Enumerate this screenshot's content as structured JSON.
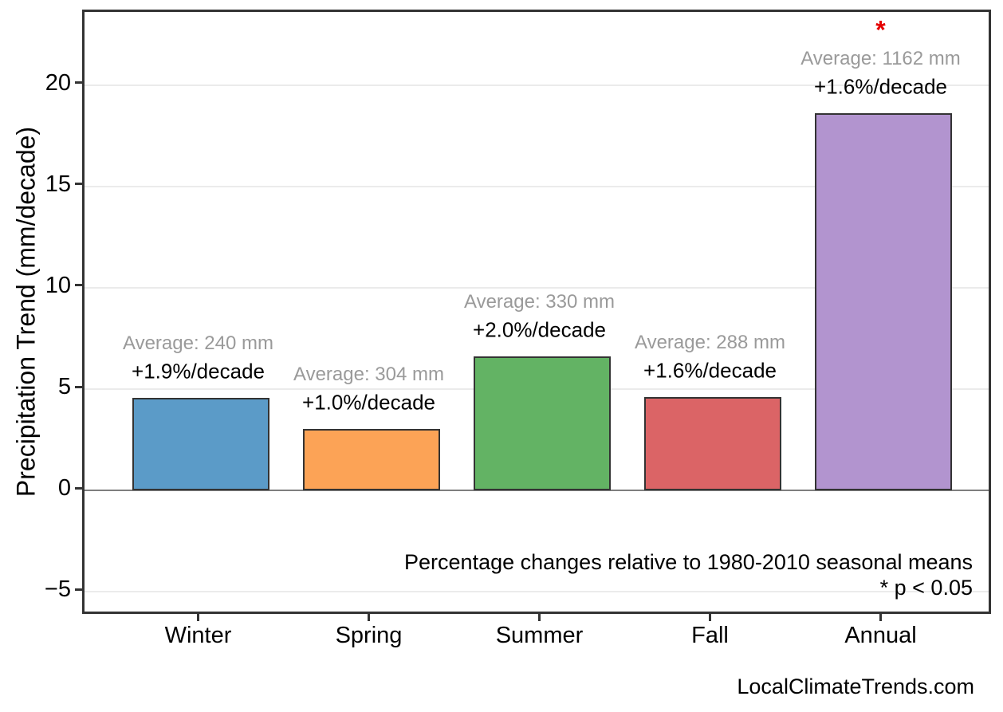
{
  "chart_data": {
    "type": "bar",
    "categories": [
      "Winter",
      "Spring",
      "Summer",
      "Fall",
      "Annual"
    ],
    "values": [
      4.56,
      3.04,
      6.6,
      4.61,
      18.6
    ],
    "series": [
      {
        "name": "Precipitation trend",
        "values": [
          4.56,
          3.04,
          6.6,
          4.61,
          18.6
        ]
      }
    ],
    "bar_colors": [
      "#5b9bc8",
      "#fca356",
      "#63b364",
      "#db6466",
      "#b294cf"
    ],
    "bar_edge_color": "#333333",
    "bar_labels": [
      {
        "average": "Average: 240 mm",
        "trend": "+1.9%/decade",
        "significant": false
      },
      {
        "average": "Average: 304 mm",
        "trend": "+1.0%/decade",
        "significant": false
      },
      {
        "average": "Average: 330 mm",
        "trend": "+2.0%/decade",
        "significant": false
      },
      {
        "average": "Average: 288 mm",
        "trend": "+1.6%/decade",
        "significant": false
      },
      {
        "average": "Average: 1162 mm",
        "trend": "+1.6%/decade",
        "significant": true
      }
    ],
    "significance_marker": "*",
    "significance_color": "#e50000",
    "title": "",
    "xlabel": "",
    "ylabel": "Precipitation Trend (mm/decade)",
    "yticks": [
      -5,
      0,
      5,
      10,
      15,
      20
    ],
    "ylim": [
      -6.2,
      23.6
    ],
    "grid": true,
    "zero_line": true,
    "legend": "none",
    "annotations": {
      "note": "Percentage changes relative to 1980-2010 seasonal means",
      "pvalue": "* p < 0.05"
    },
    "watermark": "LocalClimateTrends.com"
  }
}
